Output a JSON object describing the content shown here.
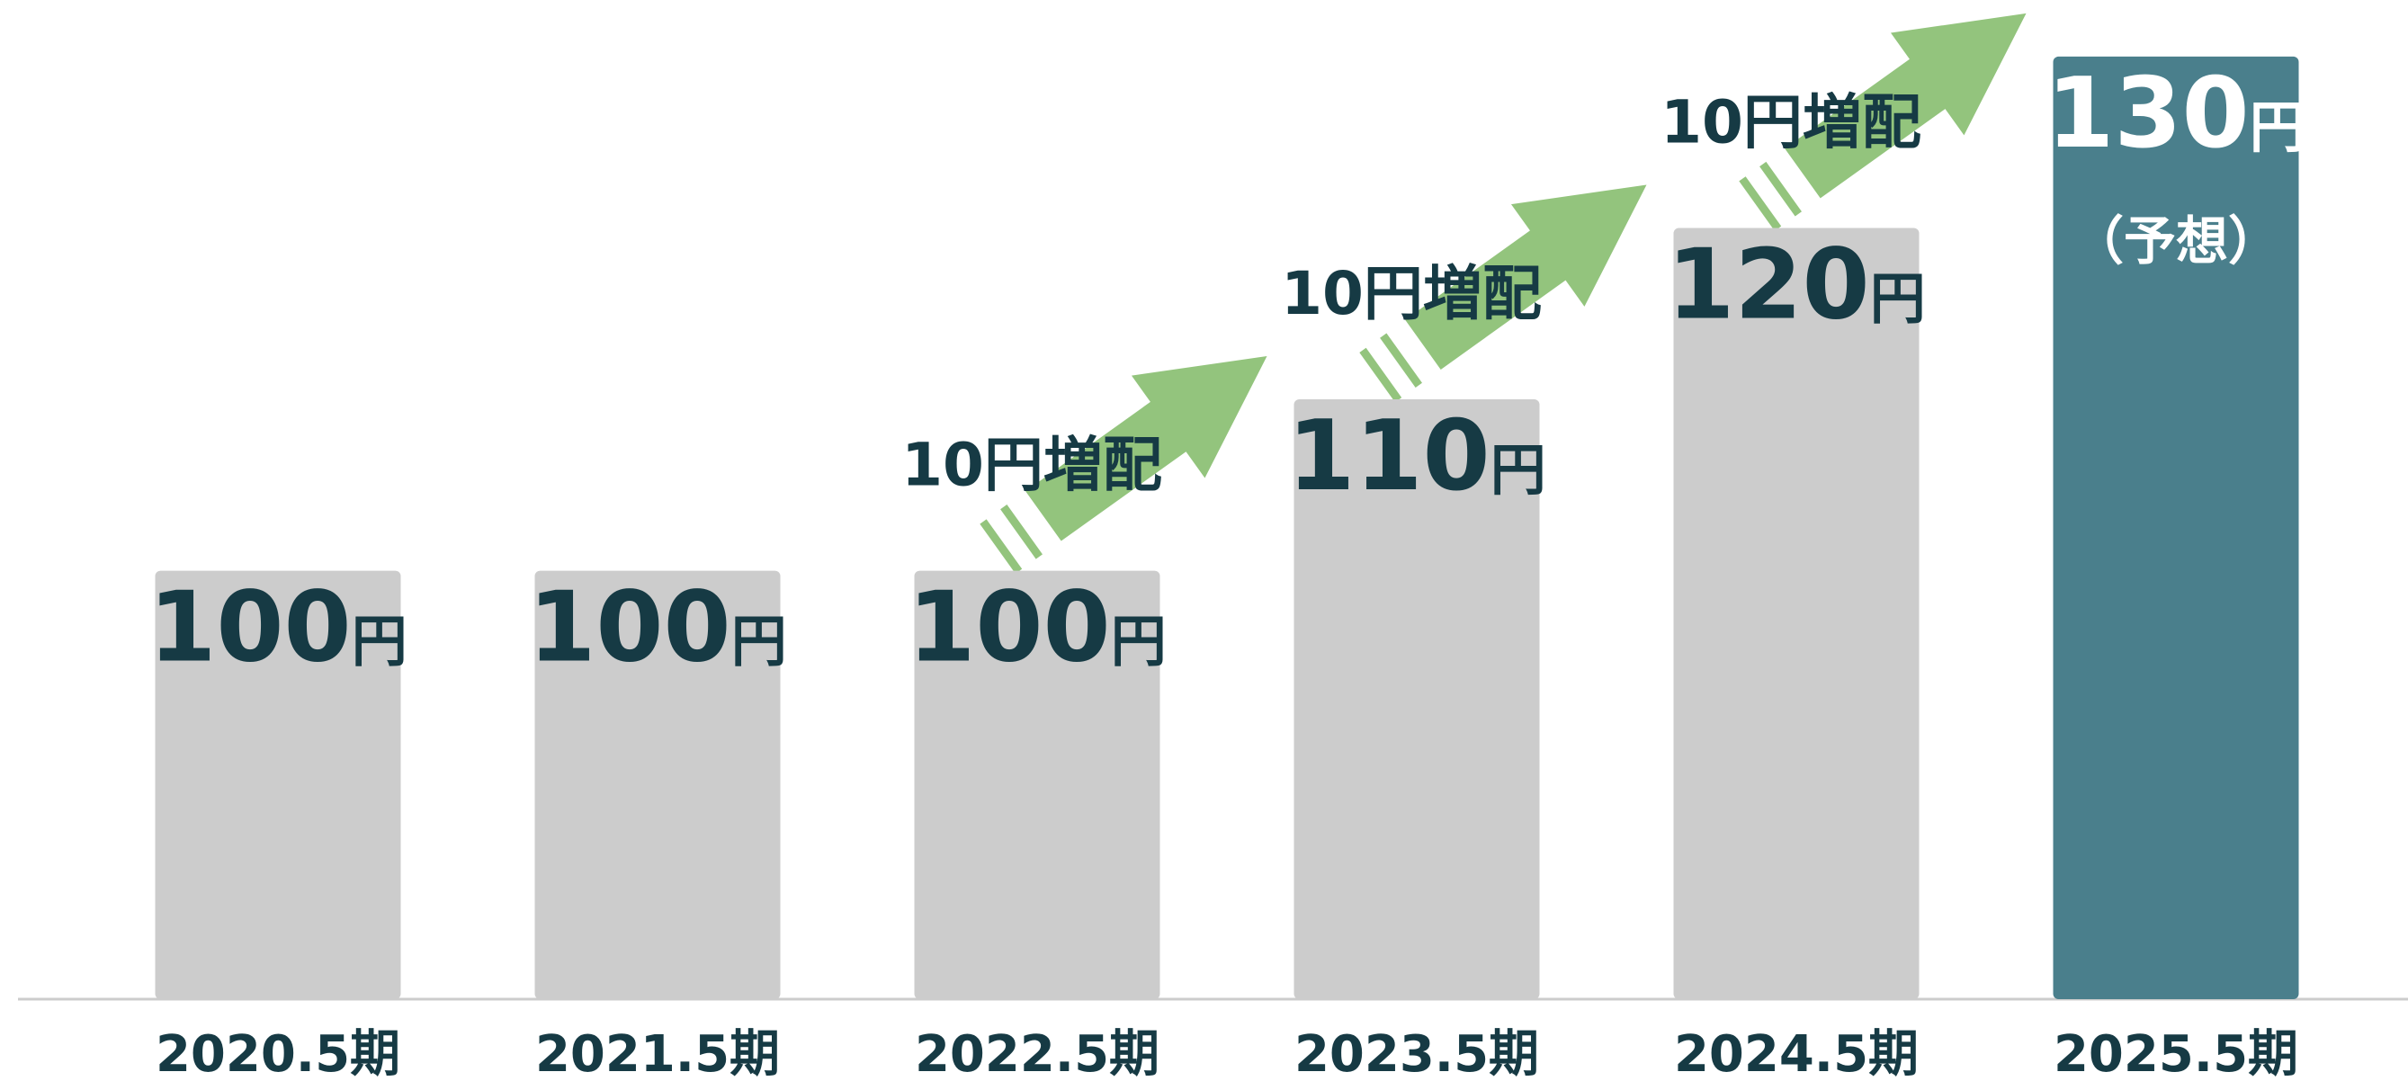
{
  "chart_data": {
    "type": "bar",
    "categories": [
      "2020.5期",
      "2021.5期",
      "2022.5期",
      "2023.5期",
      "2024.5期",
      "2025.5期"
    ],
    "values": [
      100,
      100,
      100,
      110,
      120,
      130
    ],
    "unit": "円",
    "colors": [
      "#cccccc",
      "#cccccc",
      "#cccccc",
      "#cccccc",
      "#cccccc",
      "#4a7f8c"
    ],
    "forecast_note": "（予想）",
    "annotations": [
      "10円増配",
      "10円増配",
      "10円増配"
    ],
    "ylim": [
      75,
      133.3
    ]
  }
}
